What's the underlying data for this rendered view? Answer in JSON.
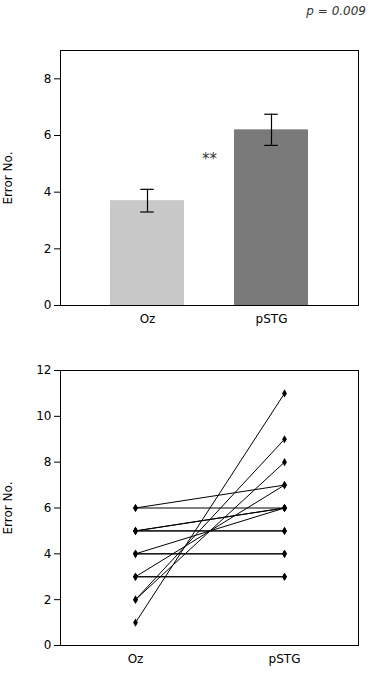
{
  "chart_data": [
    {
      "type": "bar",
      "title": "p = 0.009",
      "categories": [
        "Oz",
        "pSTG"
      ],
      "values": [
        3.7,
        6.2
      ],
      "errors": [
        0.4,
        0.55
      ],
      "colors": [
        "#c8c8c8",
        "#7a7a7a"
      ],
      "ylabel": "Error No.",
      "ylim": [
        0,
        9
      ],
      "yticks": [
        0,
        2,
        4,
        6,
        8
      ],
      "annotations": [
        {
          "text": "**",
          "y": 5.0
        }
      ]
    },
    {
      "type": "line",
      "categories": [
        "Oz",
        "pSTG"
      ],
      "color": "#000000",
      "marker": "diamond",
      "ylabel": "Error No.",
      "ylim": [
        0,
        12
      ],
      "yticks": [
        0,
        2,
        4,
        6,
        8,
        10,
        12
      ],
      "series": [
        {
          "values": [
            1,
            11
          ]
        },
        {
          "values": [
            2,
            9
          ]
        },
        {
          "values": [
            2,
            8
          ]
        },
        {
          "values": [
            3,
            7
          ]
        },
        {
          "values": [
            3,
            3
          ]
        },
        {
          "values": [
            3,
            3
          ]
        },
        {
          "values": [
            4,
            6
          ]
        },
        {
          "values": [
            4,
            4
          ]
        },
        {
          "values": [
            4,
            4
          ]
        },
        {
          "values": [
            5,
            6
          ]
        },
        {
          "values": [
            5,
            6
          ]
        },
        {
          "values": [
            5,
            5
          ]
        },
        {
          "values": [
            5,
            5
          ]
        },
        {
          "values": [
            6,
            7
          ]
        },
        {
          "values": [
            6,
            6
          ]
        }
      ]
    }
  ]
}
